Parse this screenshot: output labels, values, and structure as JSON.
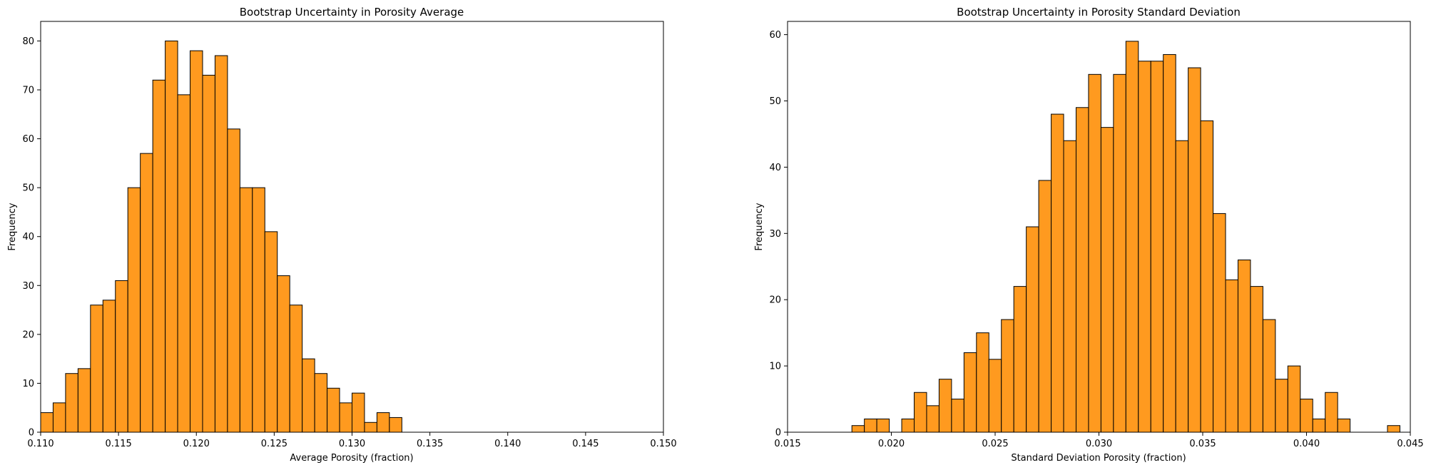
{
  "chart_data": [
    {
      "type": "bar",
      "title": "Bootstrap Uncertainty in Porosity Average",
      "xlabel": "Average Porosity (fraction)",
      "ylabel": "Frequency",
      "xlim": [
        0.11,
        0.15
      ],
      "ylim": [
        0,
        84
      ],
      "xticks": [
        "0.110",
        "0.115",
        "0.120",
        "0.125",
        "0.130",
        "0.135",
        "0.140",
        "0.145",
        "0.150"
      ],
      "yticks": [
        "0",
        "10",
        "20",
        "30",
        "40",
        "50",
        "60",
        "70",
        "80"
      ],
      "bar_color": "#ff9a1f",
      "edge_color": "#000000",
      "grid": false,
      "bins": {
        "start": 0.11,
        "width": 0.0008,
        "values": [
          4,
          6,
          12,
          13,
          26,
          27,
          31,
          50,
          57,
          72,
          80,
          69,
          78,
          73,
          77,
          62,
          50,
          50,
          41,
          32,
          26,
          15,
          12,
          9,
          6,
          8,
          2,
          4,
          3
        ]
      }
    },
    {
      "type": "bar",
      "title": "Bootstrap Uncertainty in Porosity Standard Deviation",
      "xlabel": "Standard Deviation Porosity (fraction)",
      "ylabel": "Frequency",
      "xlim": [
        0.015,
        0.045
      ],
      "ylim": [
        0,
        62
      ],
      "xticks": [
        "0.015",
        "0.020",
        "0.025",
        "0.030",
        "0.035",
        "0.040",
        "0.045"
      ],
      "yticks": [
        "0",
        "10",
        "20",
        "30",
        "40",
        "50",
        "60"
      ],
      "bar_color": "#ff9a1f",
      "edge_color": "#000000",
      "grid": false,
      "bins": {
        "start": 0.0181,
        "width": 0.0006,
        "values": [
          1,
          2,
          2,
          0,
          2,
          6,
          4,
          8,
          5,
          12,
          15,
          11,
          17,
          22,
          31,
          38,
          48,
          44,
          49,
          54,
          46,
          54,
          59,
          56,
          56,
          57,
          44,
          55,
          47,
          33,
          23,
          26,
          22,
          17,
          8,
          10,
          5,
          2,
          6,
          2,
          0,
          0,
          0,
          1
        ]
      }
    }
  ]
}
